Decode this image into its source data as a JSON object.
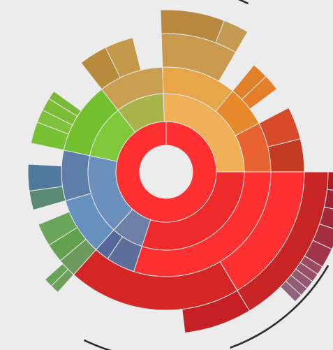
{
  "chart_data": {
    "type": "sunburst",
    "root": {
      "label": "",
      "color": "#ff3030",
      "children": [
        {
          "label": "",
          "color": "#ee2a2a",
          "weight": 190,
          "children": [
            {
              "label": "",
              "color": "#ff3030",
              "weight": 190,
              "children": [
                {
                  "label": "",
                  "color": "#ff3030",
                  "weight": 85,
                  "children": [
                    {
                      "label": "",
                      "color": "#c72424",
                      "weight": 85,
                      "children": [
                        {
                          "label": "",
                          "color": "#a51e22",
                          "weight": 9
                        },
                        {
                          "label": "",
                          "color": "#9f2230",
                          "weight": 9
                        },
                        {
                          "label": "",
                          "color": "#a3283a",
                          "weight": 9
                        },
                        {
                          "label": "",
                          "color": "#a32e40",
                          "weight": 9
                        },
                        {
                          "label": "",
                          "color": "#a2344a",
                          "weight": 9
                        },
                        {
                          "label": "",
                          "color": "#9a4a62",
                          "weight": 4
                        },
                        {
                          "label": "",
                          "color": "#985069",
                          "weight": 4
                        },
                        {
                          "label": "",
                          "color": "#955670",
                          "weight": 4
                        },
                        {
                          "label": "",
                          "color": "#925c76",
                          "weight": 4
                        },
                        {
                          "label": "",
                          "color": "#8f627c",
                          "weight": 4
                        }
                      ]
                    }
                  ]
                },
                {
                  "label": "",
                  "color": "#d52626",
                  "weight": 105,
                  "children": [
                    {
                      "label": "",
                      "color": "#c41f22",
                      "weight": 35
                    }
                  ]
                }
              ]
            }
          ]
        },
        {
          "label": "",
          "color": "#6a8fba",
          "weight": 75,
          "children": [
            {
              "label": "",
              "color": "#6690bd",
              "weight": 40,
              "children": [
                {
                  "label": "",
                  "color": "#6c9a5e",
                  "weight": 10,
                  "children": [
                    {
                      "label": "",
                      "color": "#6aa05a",
                      "weight": 4
                    },
                    {
                      "label": "",
                      "color": "#68a457",
                      "weight": 4
                    }
                  ]
                },
                {
                  "label": "",
                  "color": "#62a24e",
                  "weight": 10
                },
                {
                  "label": "",
                  "color": "#6aa65a",
                  "weight": 12
                }
              ]
            },
            {
              "label": "",
              "color": "#5b7fa8",
              "weight": 35,
              "children": [
                {
                  "label": "",
                  "color": "#5a8a74",
                  "weight": 10
                },
                {
                  "label": "",
                  "color": "#4f7a9e",
                  "weight": 14
                }
              ]
            }
          ]
        },
        {
          "label": "",
          "color": "#6e7fa8",
          "weight": 24,
          "children": [
            {
              "label": "",
              "color": "#5d6e9a",
              "weight": 12
            },
            {
              "label": "",
              "color": "#56679a",
              "weight": 6
            }
          ]
        },
        {
          "label": "",
          "color": "#7fc83a",
          "weight": 32,
          "children": [
            {
              "label": "",
              "color": "#72c02e",
              "weight": 22,
              "children": [
                {
                  "label": "",
                  "color": "#78c034",
                  "weight": 5
                },
                {
                  "label": "",
                  "color": "#7ec23c",
                  "weight": 3
                },
                {
                  "label": "",
                  "color": "#7cbd36",
                  "weight": 3
                },
                {
                  "label": "",
                  "color": "#7ab83a",
                  "weight": 2
                }
              ]
            }
          ]
        },
        {
          "label": "",
          "color": "#a8b44a",
          "weight": 20,
          "children": [
            {
              "label": "",
              "color": "#c9a052",
              "weight": 12,
              "children": [
                {
                  "label": "",
                  "color": "#b78a3c",
                  "weight": 4
                },
                {
                  "label": "",
                  "color": "#c29a4a",
                  "weight": 4
                }
              ]
            }
          ]
        },
        {
          "label": "",
          "color": "#f0b058",
          "weight": 40,
          "children": [
            {
              "label": "",
              "color": "#e6a548",
              "weight": 18,
              "children": [
                {
                  "label": "",
                  "color": "#c9994e",
                  "weight": 14,
                  "children": [
                    {
                      "label": "",
                      "color": "#b8883e",
                      "weight": 10
                    },
                    {
                      "label": "",
                      "color": "#c49a52",
                      "weight": 4
                    }
                  ]
                }
              ]
            },
            {
              "label": "",
              "color": "#e88a2c",
              "weight": 10,
              "children": [
                {
                  "label": "",
                  "color": "#e2802a",
                  "weight": 3
                },
                {
                  "label": "",
                  "color": "#e57f2c",
                  "weight": 3
                }
              ]
            },
            {
              "label": "",
              "color": "#e86330",
              "weight": 12,
              "children": [
                {
                  "label": "",
                  "color": "#d84a2a",
                  "weight": 6
                },
                {
                  "label": "",
                  "color": "#c43b24",
                  "weight": 6
                }
              ]
            }
          ]
        }
      ]
    }
  }
}
